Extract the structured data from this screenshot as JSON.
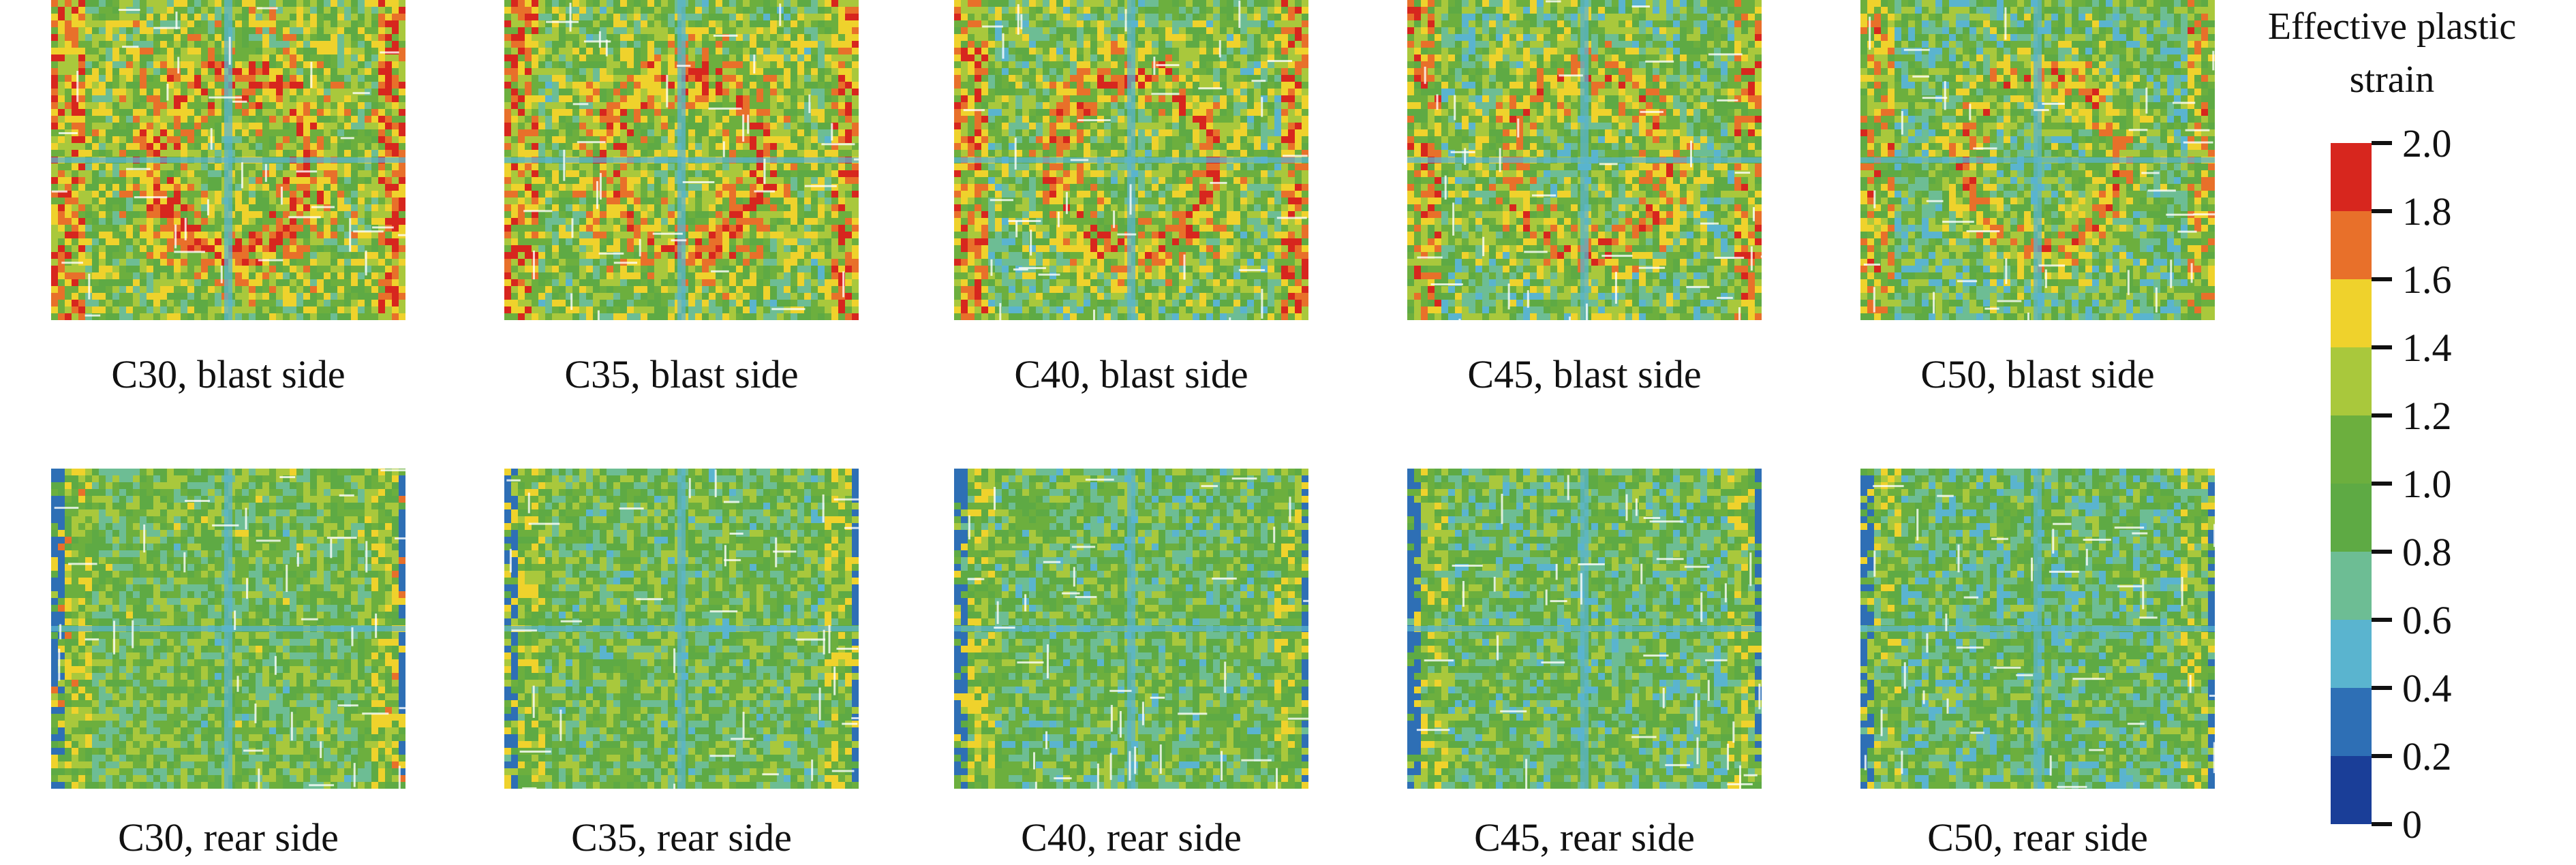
{
  "legend": {
    "title_line1": "Effective plastic",
    "title_line2": "strain",
    "ticks": [
      "2.0",
      "1.8",
      "1.6",
      "1.4",
      "1.2",
      "1.0",
      "0.8",
      "0.6",
      "0.4",
      "0.2",
      "0"
    ],
    "colors": [
      "#d7261e",
      "#e8702a",
      "#efd22c",
      "#a9c83c",
      "#6caf3e",
      "#5eaa44",
      "#6dbd94",
      "#5ab4cf",
      "#2e6fb5",
      "#1a3e98"
    ]
  },
  "panels": [
    {
      "caption": "C30, blast side",
      "grade": "C30",
      "side": "blast"
    },
    {
      "caption": "C35, blast side",
      "grade": "C35",
      "side": "blast"
    },
    {
      "caption": "C40, blast side",
      "grade": "C40",
      "side": "blast"
    },
    {
      "caption": "C45, blast side",
      "grade": "C45",
      "side": "blast"
    },
    {
      "caption": "C50, blast side",
      "grade": "C50",
      "side": "blast"
    },
    {
      "caption": "C30, rear side",
      "grade": "C30",
      "side": "rear"
    },
    {
      "caption": "C35, rear side",
      "grade": "C35",
      "side": "rear"
    },
    {
      "caption": "C40, rear side",
      "grade": "C40",
      "side": "rear"
    },
    {
      "caption": "C45, rear side",
      "grade": "C45",
      "side": "rear"
    },
    {
      "caption": "C50, rear side",
      "grade": "C50",
      "side": "rear"
    }
  ]
}
